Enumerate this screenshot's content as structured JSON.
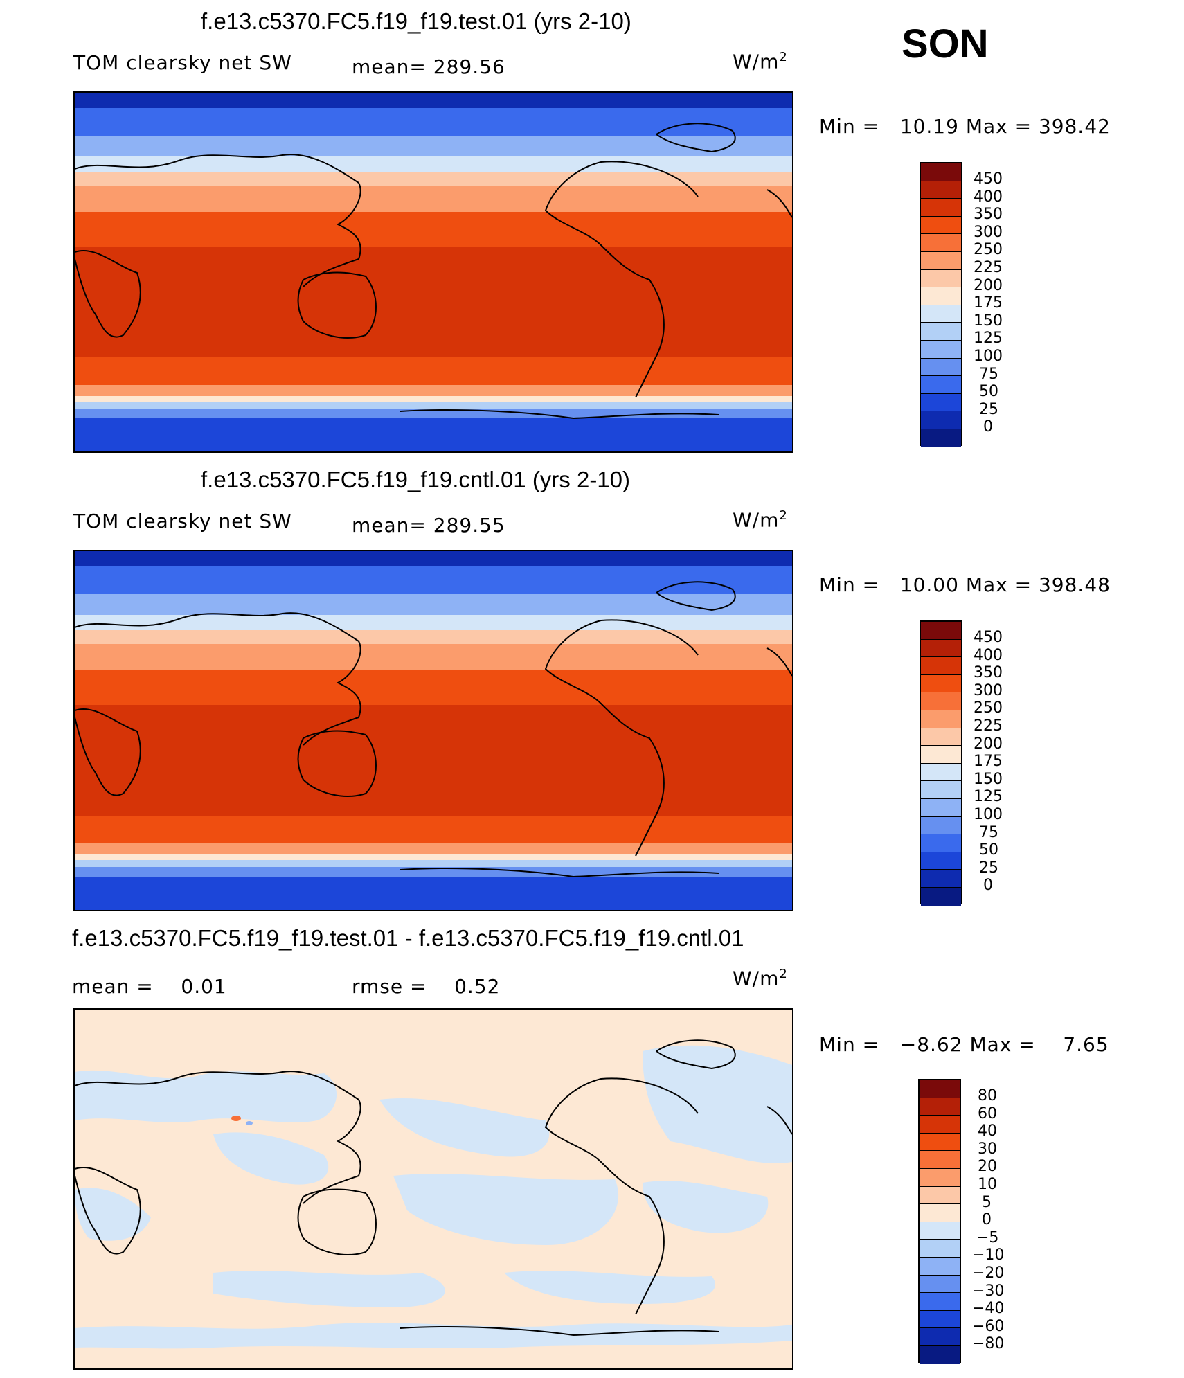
{
  "season": "SON",
  "units": "W/m",
  "units_exp": "2",
  "panels": [
    {
      "title": "f.e13.c5370.FC5.f19_f19.test.01 (yrs 2-10)",
      "variable": "TOM clearsky net SW",
      "mean_label": "mean=",
      "mean_value": "289.56",
      "min_label": "Min =",
      "min_value": "10.19",
      "max_label": "Max =",
      "max_value": "398.42",
      "levels": [
        "450",
        "400",
        "350",
        "300",
        "250",
        "225",
        "200",
        "175",
        "150",
        "125",
        "100",
        "75",
        "50",
        "25",
        "0"
      ]
    },
    {
      "title": "f.e13.c5370.FC5.f19_f19.cntl.01 (yrs 2-10)",
      "variable": "TOM clearsky net SW",
      "mean_label": "mean=",
      "mean_value": "289.55",
      "min_label": "Min =",
      "min_value": "10.00",
      "max_label": "Max =",
      "max_value": "398.48",
      "levels": [
        "450",
        "400",
        "350",
        "300",
        "250",
        "225",
        "200",
        "175",
        "150",
        "125",
        "100",
        "75",
        "50",
        "25",
        "0"
      ]
    },
    {
      "title": "f.e13.c5370.FC5.f19_f19.test.01 - f.e13.c5370.FC5.f19_f19.cntl.01",
      "mean_label": "mean =",
      "mean_value": "0.01",
      "rmse_label": "rmse =",
      "rmse_value": "0.52",
      "min_label": "Min =",
      "min_value": "−8.62",
      "max_label": "Max =",
      "max_value": "7.65",
      "levels": [
        "80",
        "60",
        "40",
        "30",
        "20",
        "10",
        "5",
        "0",
        "−5",
        "−10",
        "−20",
        "−30",
        "−40",
        "−60",
        "−80"
      ]
    }
  ],
  "colorbar_colors": [
    "#7a0a0a",
    "#b42007",
    "#d63407",
    "#ef4e10",
    "#f77038",
    "#fb9c6c",
    "#fcc8a8",
    "#fde8d4",
    "#d4e6f8",
    "#b2d0f6",
    "#8eb2f5",
    "#6690f0",
    "#3a6aed",
    "#1c46d9",
    "#0e2bb0",
    "#081a82"
  ],
  "diff_colorbar_colors": [
    "#7a0a0a",
    "#b42007",
    "#d63407",
    "#ef4e10",
    "#f77038",
    "#fb9c6c",
    "#fcc8a8",
    "#fde8d4",
    "#d4e6f8",
    "#b2d0f6",
    "#8eb2f5",
    "#6690f0",
    "#3a6aed",
    "#1c46d9",
    "#0e2bb0",
    "#081a82"
  ]
}
